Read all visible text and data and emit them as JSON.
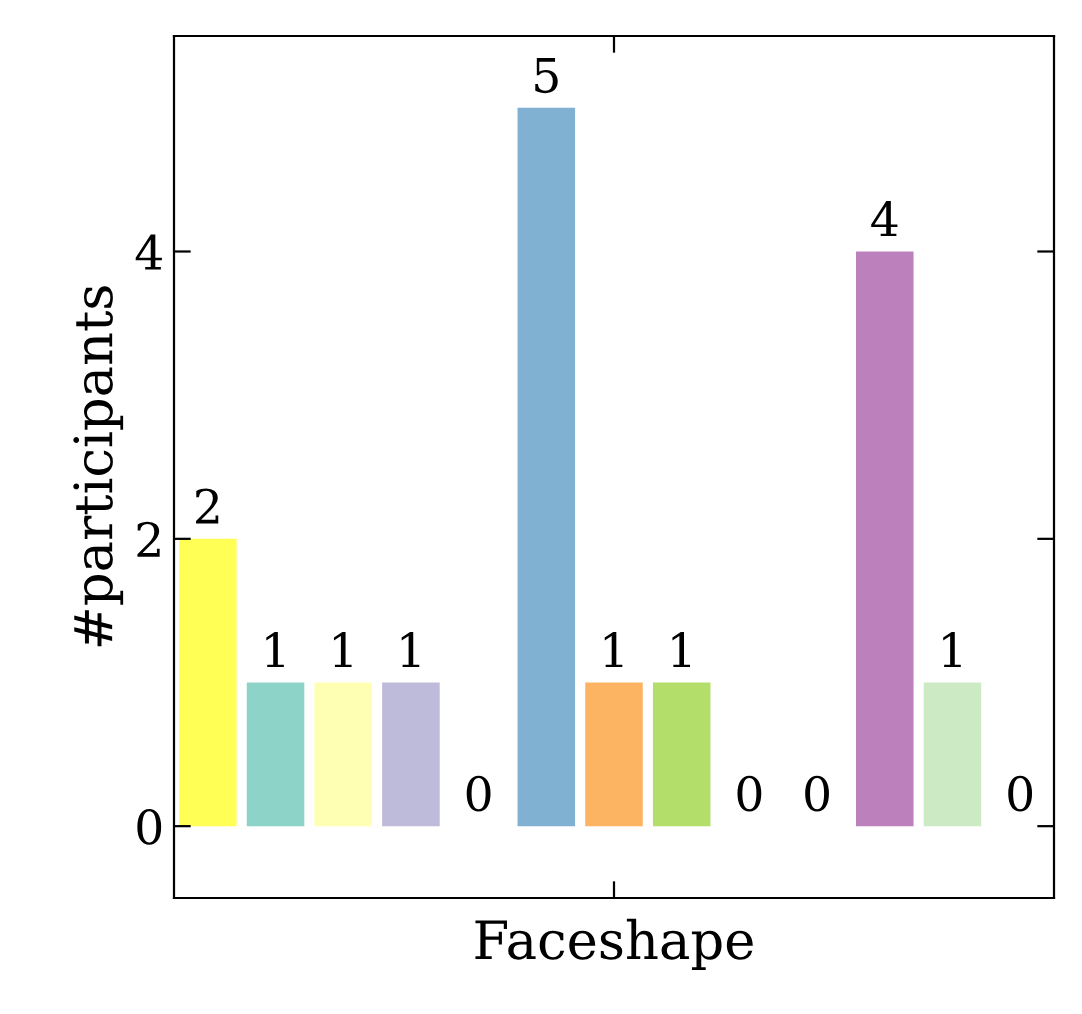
{
  "chart_data": {
    "type": "bar",
    "xlabel": "Faceshape",
    "ylabel": "#participants",
    "categories": [
      null,
      null,
      null,
      null,
      null,
      null,
      null,
      null,
      null,
      null,
      null,
      null,
      null
    ],
    "values": [
      2,
      1,
      1,
      1,
      0,
      5,
      1,
      1,
      0,
      0,
      4,
      1,
      0
    ],
    "colors": [
      "#ffff55",
      "#8dd3c7",
      "#ffffb3",
      "#bebada",
      "#fb8072",
      "#80b1d3",
      "#fdb462",
      "#b3de69",
      "#fccde5",
      "#d9d9d9",
      "#bc80bd",
      "#ccebc5",
      "#ffed6f"
    ],
    "ylim": [
      -0.5,
      5.5
    ],
    "yticks": [
      0,
      2,
      4
    ],
    "data_labels": true,
    "grid": false,
    "legend": false
  }
}
